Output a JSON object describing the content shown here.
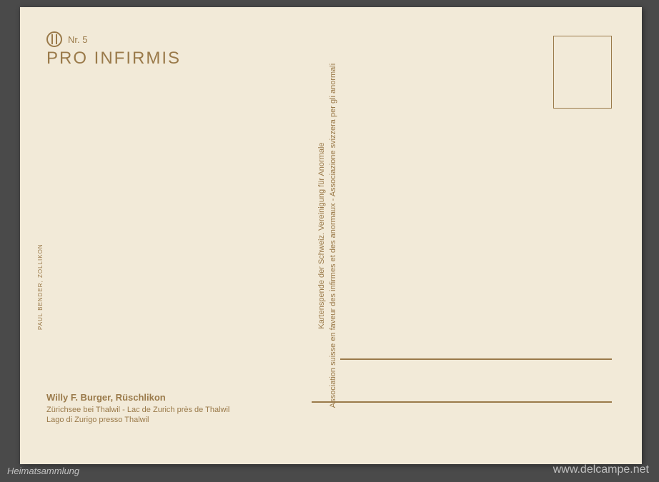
{
  "header": {
    "nr": "Nr. 5",
    "title": "PRO INFIRMIS"
  },
  "divider": {
    "line1": "Kartenspende der Schweiz. Vereinigung für Anormale",
    "line2": "Association suisse en faveur des infirmes et des anormaux  -  Associazione svizzera per gli anormali"
  },
  "artist": {
    "name": "Willy F. Burger, Rüschlikon",
    "caption_de_fr": "Zürichsee bei Thalwil - Lac de Zurich près de Thalwil",
    "caption_it": "Lago di Zurigo presso Thalwil"
  },
  "credit": "PAUL BENDER, ZOLLIKON",
  "watermark": {
    "left": "Heimatsammlung",
    "right": "www.delcampe.net"
  },
  "colors": {
    "card_bg": "#f2ead8",
    "ink": "#9a7a4a",
    "page_bg": "#4a4a4a"
  }
}
